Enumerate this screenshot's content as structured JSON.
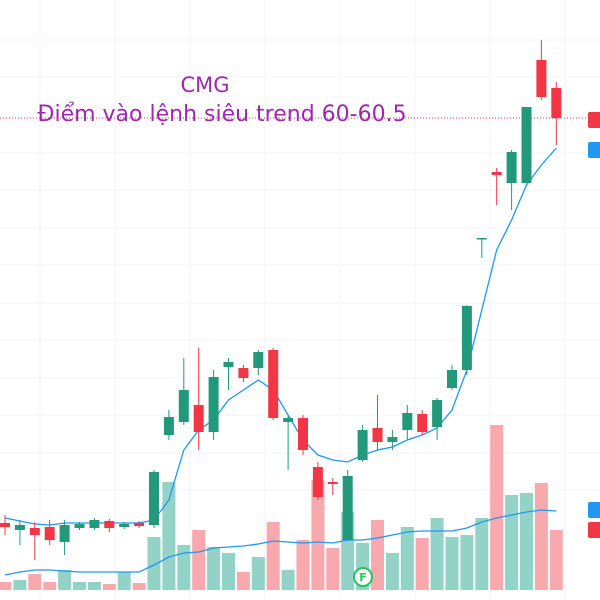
{
  "chart_data": {
    "type": "candlestick",
    "title": "CMG",
    "subtitle": "Điểm vào lệnh siêu trend 60-60.5",
    "event_marker": "F",
    "up_color": "#22997a",
    "down_color": "#f23645",
    "up_volume_color": "#93d2c6",
    "down_volume_color": "#f7a9ad",
    "ma_color": "#2196f3",
    "ylim": [
      12.25,
      72.25
    ],
    "volume_ylim": [
      0,
      100
    ],
    "open": [
      19.95,
      19.25,
      19.45,
      19.55,
      18.05,
      19.45,
      19.45,
      20.15,
      19.55,
      19.95,
      19.75,
      28.75,
      30.05,
      31.75,
      29.05,
      35.55,
      35.45,
      35.45,
      37.25,
      30.05,
      30.45,
      25.55,
      24.05,
      18.25,
      26.25,
      29.45,
      28.05,
      29.25,
      30.85,
      29.55,
      33.45,
      35.25,
      48.45,
      55.05,
      53.95,
      53.95,
      66.25,
      63.45
    ],
    "high": [
      20.75,
      20.25,
      20.05,
      20.25,
      20.25,
      20.05,
      20.45,
      20.35,
      20.05,
      20.15,
      25.25,
      31.25,
      36.45,
      37.45,
      35.25,
      36.45,
      35.75,
      37.25,
      37.45,
      30.75,
      30.75,
      26.05,
      24.45,
      25.25,
      29.75,
      32.75,
      29.25,
      31.75,
      31.25,
      32.45,
      35.75,
      41.75,
      48.45,
      55.45,
      57.25,
      61.55,
      68.25,
      64.05
    ],
    "low": [
      18.75,
      17.75,
      16.25,
      17.75,
      16.75,
      19.25,
      19.25,
      19.05,
      19.35,
      19.45,
      19.45,
      28.25,
      29.75,
      27.25,
      28.25,
      33.25,
      34.05,
      34.75,
      30.25,
      25.25,
      26.75,
      22.25,
      22.75,
      18.25,
      26.05,
      27.25,
      27.25,
      28.25,
      28.75,
      28.25,
      33.25,
      34.75,
      46.45,
      51.75,
      51.25,
      53.95,
      62.25,
      57.75
    ],
    "close": [
      19.55,
      19.75,
      18.75,
      18.25,
      19.75,
      19.85,
      20.25,
      19.45,
      19.85,
      19.65,
      25.05,
      30.55,
      33.25,
      29.05,
      34.55,
      36.05,
      34.45,
      37.05,
      30.45,
      30.45,
      27.25,
      22.55,
      23.85,
      24.65,
      29.25,
      28.05,
      28.55,
      30.95,
      29.05,
      32.25,
      35.25,
      41.65,
      48.45,
      54.75,
      57.05,
      61.55,
      62.55,
      60.45
    ],
    "ma": [
      20.45,
      20.15,
      19.85,
      19.75,
      19.95,
      19.95,
      19.95,
      19.95,
      19.95,
      19.95,
      20.25,
      22.25,
      27.25,
      29.25,
      30.25,
      32.25,
      33.25,
      34.25,
      33.25,
      30.75,
      28.25,
      26.75,
      26.25,
      26.05,
      26.75,
      27.25,
      27.55,
      28.25,
      28.75,
      29.45,
      31.25,
      35.25,
      41.25,
      47.25,
      50.25,
      53.75,
      55.75,
      57.45
    ],
    "volume": [
      4,
      5,
      8,
      4,
      10,
      4,
      4,
      3,
      9,
      3.5,
      26.5,
      54,
      22.5,
      30,
      21.5,
      18.5,
      9,
      16.5,
      34,
      10,
      25,
      55,
      21,
      39,
      23.5,
      35,
      18.5,
      31.5,
      26,
      36,
      26.5,
      27.5,
      36,
      82.5,
      47.5,
      48.5,
      53.5,
      30
    ],
    "volume_ma": [
      7.5,
      9,
      10,
      10,
      9.5,
      9,
      9,
      9,
      9,
      9,
      12.5,
      16.5,
      18.5,
      19,
      21,
      21.5,
      22,
      23,
      24.5,
      24,
      23.5,
      24,
      23.5,
      25,
      25,
      26,
      27.5,
      29,
      29.5,
      29.5,
      29.5,
      31,
      34,
      36,
      37.5,
      39,
      40,
      39.5
    ]
  }
}
